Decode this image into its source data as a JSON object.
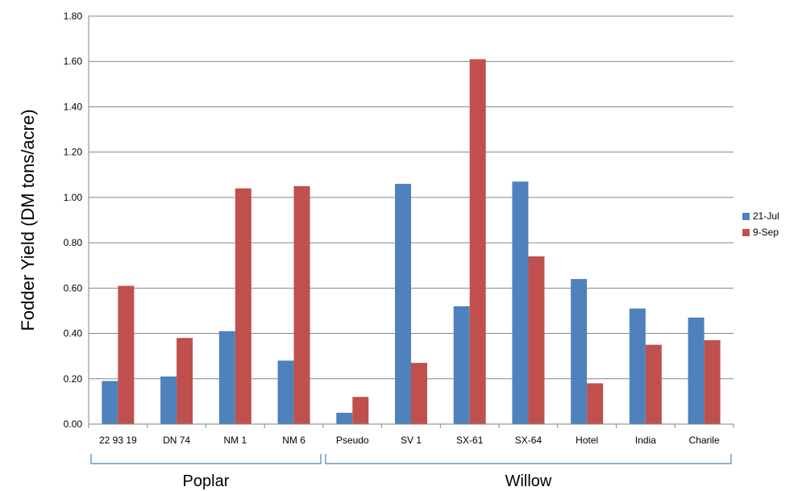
{
  "chart_data": {
    "type": "bar",
    "title": "",
    "xlabel": "",
    "ylabel": "Fodder Yield (DM tons/acre)",
    "ylim": [
      0,
      1.8
    ],
    "yticks": [
      "0.00",
      "0.20",
      "0.40",
      "0.60",
      "0.80",
      "1.00",
      "1.20",
      "1.40",
      "1.60",
      "1.80"
    ],
    "grid": true,
    "legend_position": "right",
    "categories": [
      "22 93 19",
      "DN 74",
      "NM 1",
      "NM 6",
      "Pseudo",
      "SV 1",
      "SX-61",
      "SX-64",
      "Hotel",
      "India",
      "Charile"
    ],
    "groups": [
      {
        "label": "Poplar",
        "start": 0,
        "end": 3
      },
      {
        "label": "Willow",
        "start": 4,
        "end": 10
      }
    ],
    "series": [
      {
        "name": "21-Jul",
        "color": "#4F81BD",
        "values": [
          0.19,
          0.21,
          0.41,
          0.28,
          0.05,
          1.06,
          0.52,
          1.07,
          0.64,
          0.51,
          0.47
        ]
      },
      {
        "name": "9-Sep",
        "color": "#C0504D",
        "values": [
          0.61,
          0.38,
          1.04,
          1.05,
          0.12,
          0.27,
          1.61,
          0.74,
          0.18,
          0.35,
          0.37
        ]
      }
    ]
  }
}
